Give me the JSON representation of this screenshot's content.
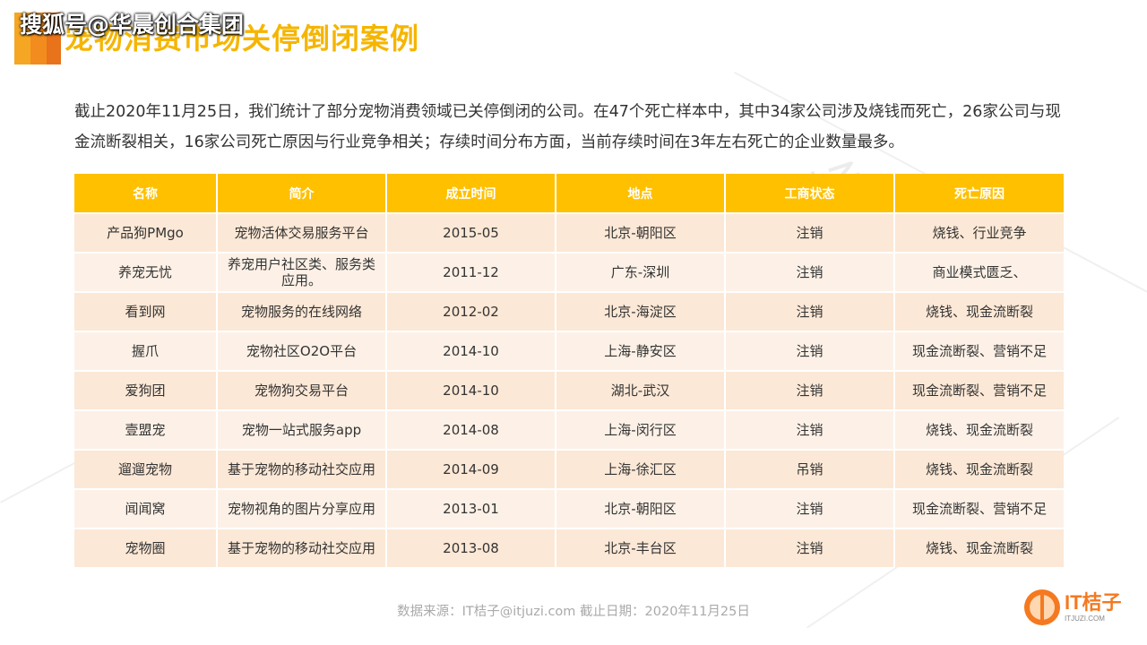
{
  "header": {
    "watermark": "搜狐号@华晨创合集团",
    "title": "宠物消费市场关停倒闭案例",
    "accent_colors": [
      "#f5a623",
      "#f28c1e",
      "#e8731a"
    ]
  },
  "intro": "截止2020年11月25日，我们统计了部分宠物消费领域已关停倒闭的公司。在47个死亡样本中，其中34家公司涉及烧钱而死亡，26家公司与现金流断裂相关，16家公司死亡原因与行业竞争相关；存续时间分布方面，当前存续时间在3年左右死亡的企业数量最多。",
  "table": {
    "headers": [
      "名称",
      "简介",
      "成立时间",
      "地点",
      "工商状态",
      "死亡原因"
    ],
    "rows": [
      [
        "产品狗PMgo",
        "宠物活体交易服务平台",
        "2015-05",
        "北京-朝阳区",
        "注销",
        "烧钱、行业竞争"
      ],
      [
        "养宠无忧",
        "养宠用户社区类、服务类应用。",
        "2011-12",
        "广东-深圳",
        "注销",
        "商业模式匮乏、"
      ],
      [
        "看到网",
        "宠物服务的在线网络",
        "2012-02",
        "北京-海淀区",
        "注销",
        "烧钱、现金流断裂"
      ],
      [
        "握爪",
        "宠物社区O2O平台",
        "2014-10",
        "上海-静安区",
        "注销",
        "现金流断裂、营销不足"
      ],
      [
        "爱狗团",
        "宠物狗交易平台",
        "2014-10",
        "湖北-武汉",
        "注销",
        "现金流断裂、营销不足"
      ],
      [
        "壹盟宠",
        "宠物一站式服务app",
        "2014-08",
        "上海-闵行区",
        "注销",
        "烧钱、现金流断裂"
      ],
      [
        "遛遛宠物",
        "基于宠物的移动社交应用",
        "2014-09",
        "上海-徐汇区",
        "吊销",
        "烧钱、现金流断裂"
      ],
      [
        "闻闻窝",
        "宠物视角的图片分享应用",
        "2013-01",
        "北京-朝阳区",
        "注销",
        "现金流断裂、营销不足"
      ],
      [
        "宠物圈",
        "基于宠物的移动社交应用",
        "2013-08",
        "北京-丰台区",
        "注销",
        "烧钱、现金流断裂"
      ]
    ]
  },
  "watermark_logo": {
    "text": "IT桔子",
    "sub": "ITJUZI.COM"
  },
  "footer": {
    "source": "数据来源：IT桔子@itjuzi.com   截止日期：2020年11月25日",
    "logo_main": "IT桔子",
    "logo_sub": "ITJUZI.COM",
    "logo_color": "#f47920"
  }
}
